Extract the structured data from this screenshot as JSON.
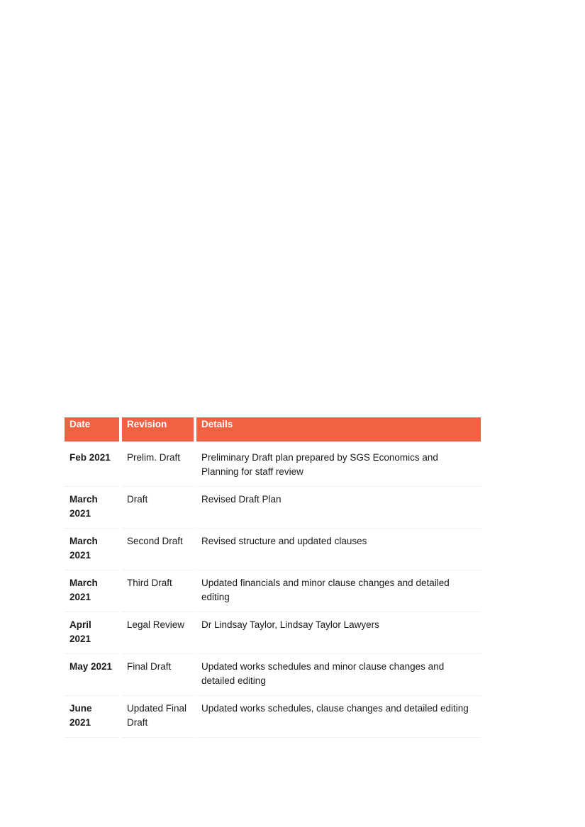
{
  "table": {
    "header_color": "#f26142",
    "headers": [
      "Date",
      "Revision",
      "Details"
    ],
    "rows": [
      {
        "date": "Feb 2021",
        "revision": "Prelim. Draft",
        "details": "Preliminary Draft plan prepared by SGS Economics and Planning for staff review"
      },
      {
        "date": "March 2021",
        "revision": "Draft",
        "details": "Revised Draft Plan"
      },
      {
        "date": "March 2021",
        "revision": "Second Draft",
        "details": "Revised structure and updated clauses"
      },
      {
        "date": "March 2021",
        "revision": "Third Draft",
        "details": "Updated financials and minor clause changes and detailed editing"
      },
      {
        "date": "April 2021",
        "revision": "Legal Review",
        "details": "Dr Lindsay Taylor, Lindsay Taylor Lawyers"
      },
      {
        "date": "May 2021",
        "revision": "Final Draft",
        "details": "Updated works schedules and minor clause changes and detailed editing"
      },
      {
        "date": "June 2021",
        "revision": "Updated Final Draft",
        "details": "Updated works schedules, clause changes and detailed editing"
      }
    ]
  }
}
